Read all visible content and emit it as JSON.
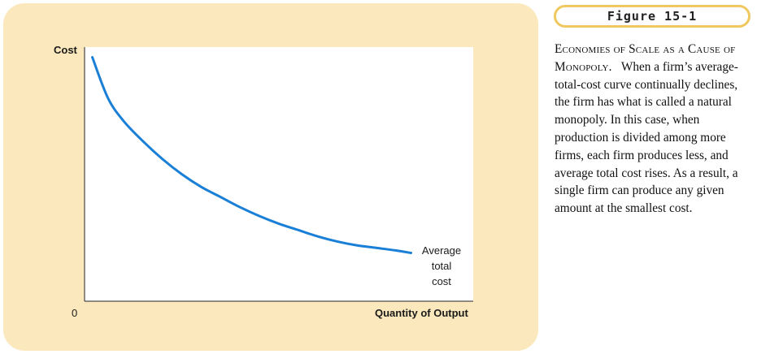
{
  "figure": {
    "badge": "Figure 15-1",
    "caption_heading": "Economies of Scale as a Cause of Monopoly.",
    "caption_body": "When a firm’s average-total-cost curve continually declines, the firm has what is called a natural monopoly. In this case, when production is divided among more firms, each firm produces less, and average total cost rises. As a result, a single firm can produce any given amount at the smallest cost."
  },
  "chart_data": {
    "type": "line",
    "ylabel": "Cost",
    "xlabel": "Quantity of Output",
    "origin_label": "0",
    "xlim": [
      0,
      1
    ],
    "ylim": [
      0,
      1
    ],
    "grid": false,
    "series": [
      {
        "name": "Average total cost",
        "color": "#1a7fd6",
        "x": [
          0.02,
          0.06,
          0.1,
          0.15,
          0.2,
          0.25,
          0.3,
          0.35,
          0.4,
          0.45,
          0.5,
          0.55,
          0.6,
          0.65,
          0.7,
          0.75,
          0.8,
          0.84
        ],
        "y": [
          0.96,
          0.8,
          0.71,
          0.63,
          0.56,
          0.5,
          0.45,
          0.41,
          0.37,
          0.335,
          0.305,
          0.28,
          0.255,
          0.235,
          0.22,
          0.21,
          0.2,
          0.19
        ]
      }
    ],
    "curve_label_lines": [
      "Average",
      "total",
      "cost"
    ]
  }
}
